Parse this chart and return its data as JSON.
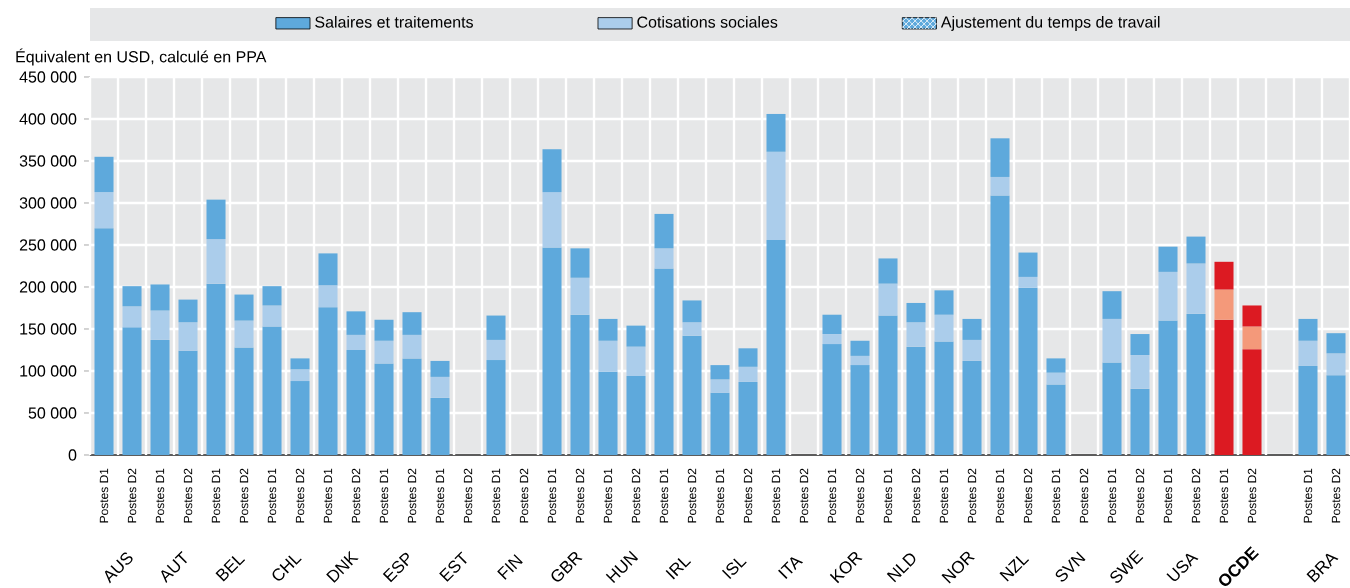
{
  "chart_data": {
    "type": "bar",
    "stacked": true,
    "ylabel": "Équivalent en USD, calculé en PPA",
    "categories": [
      "Postes D1",
      "Postes D2",
      "Postes D1",
      "Postes D2",
      "Postes D1",
      "Postes D2",
      "Postes D1",
      "Postes D2",
      "Postes D1",
      "Postes D2",
      "Postes D1",
      "Postes D2",
      "Postes D1",
      "Postes D2",
      "Postes D1",
      "Postes D2",
      "Postes D1",
      "Postes D2",
      "Postes D1",
      "Postes D2",
      "Postes D1",
      "Postes D2",
      "Postes D1",
      "Postes D2",
      "Postes D1",
      "Postes D2",
      "Postes D1",
      "Postes D2",
      "Postes D1",
      "Postes D2",
      "Postes D1",
      "Postes D2",
      "Postes D1",
      "Postes D2",
      "Postes D1",
      "Postes D2",
      "Postes D1",
      "Postes D2",
      "Postes D1",
      "Postes D2",
      "Postes D1",
      "Postes D2",
      null,
      "Postes D1",
      "Postes D2"
    ],
    "series": [
      {
        "name": "Salaires et traitements",
        "color": "#5ea9dc",
        "colors": [
          "#5ea9dc",
          "#5ea9dc",
          "#5ea9dc",
          "#5ea9dc",
          "#5ea9dc",
          "#5ea9dc",
          "#5ea9dc",
          "#5ea9dc",
          "#5ea9dc",
          "#5ea9dc",
          "#5ea9dc",
          "#5ea9dc",
          "#5ea9dc",
          "#5ea9dc",
          "#5ea9dc",
          "#5ea9dc",
          "#5ea9dc",
          "#5ea9dc",
          "#5ea9dc",
          "#5ea9dc",
          "#5ea9dc",
          "#5ea9dc",
          "#5ea9dc",
          "#5ea9dc",
          "#5ea9dc",
          "#5ea9dc",
          "#5ea9dc",
          "#5ea9dc",
          "#5ea9dc",
          "#5ea9dc",
          "#5ea9dc",
          "#5ea9dc",
          "#5ea9dc",
          "#5ea9dc",
          "#5ea9dc",
          "#5ea9dc",
          "#5ea9dc",
          "#5ea9dc",
          "#5ea9dc",
          "#5ea9dc",
          "#dc1a22",
          "#dc1a22",
          "#5ea9dc",
          "#5ea9dc",
          "#5ea9dc"
        ],
        "values": [
          270000,
          152000,
          137000,
          124000,
          204000,
          128000,
          153000,
          88000,
          176000,
          125000,
          109000,
          115000,
          68000,
          null,
          113000,
          null,
          247000,
          167000,
          99000,
          94000,
          222000,
          142000,
          74000,
          87000,
          256000,
          null,
          132000,
          107000,
          166000,
          129000,
          135000,
          112000,
          309000,
          199000,
          84000,
          null,
          110000,
          79000,
          160000,
          168000,
          161000,
          126000,
          null,
          106000,
          95000
        ]
      },
      {
        "name": "Cotisations sociales",
        "color": "#abcdeb",
        "colors": [
          "#abcdeb",
          "#abcdeb",
          "#abcdeb",
          "#abcdeb",
          "#abcdeb",
          "#abcdeb",
          "#abcdeb",
          "#abcdeb",
          "#abcdeb",
          "#abcdeb",
          "#abcdeb",
          "#abcdeb",
          "#abcdeb",
          "#abcdeb",
          "#abcdeb",
          "#abcdeb",
          "#abcdeb",
          "#abcdeb",
          "#abcdeb",
          "#abcdeb",
          "#abcdeb",
          "#abcdeb",
          "#abcdeb",
          "#abcdeb",
          "#abcdeb",
          "#abcdeb",
          "#abcdeb",
          "#abcdeb",
          "#abcdeb",
          "#abcdeb",
          "#abcdeb",
          "#abcdeb",
          "#abcdeb",
          "#abcdeb",
          "#abcdeb",
          "#abcdeb",
          "#abcdeb",
          "#abcdeb",
          "#abcdeb",
          "#abcdeb",
          "#f4997a",
          "#f4997a",
          "#abcdeb",
          "#abcdeb",
          "#abcdeb"
        ],
        "values": [
          43000,
          25000,
          35000,
          34000,
          53000,
          32000,
          25000,
          14000,
          26000,
          18000,
          27000,
          28000,
          25000,
          null,
          24000,
          null,
          66000,
          44000,
          37000,
          35000,
          24000,
          16000,
          16000,
          18000,
          105000,
          null,
          12000,
          11000,
          38000,
          29000,
          32000,
          25000,
          22000,
          13000,
          14000,
          null,
          52000,
          40000,
          58000,
          60000,
          36000,
          27000,
          null,
          30000,
          26000
        ]
      },
      {
        "name": "Ajustement du temps de travail",
        "color": "#5ea9dc",
        "colors": [
          "#5ea9dc",
          "#5ea9dc",
          "#5ea9dc",
          "#5ea9dc",
          "#5ea9dc",
          "#5ea9dc",
          "#5ea9dc",
          "#5ea9dc",
          "#5ea9dc",
          "#5ea9dc",
          "#5ea9dc",
          "#5ea9dc",
          "#5ea9dc",
          "#5ea9dc",
          "#5ea9dc",
          "#5ea9dc",
          "#5ea9dc",
          "#5ea9dc",
          "#5ea9dc",
          "#5ea9dc",
          "#5ea9dc",
          "#5ea9dc",
          "#5ea9dc",
          "#5ea9dc",
          "#5ea9dc",
          "#5ea9dc",
          "#5ea9dc",
          "#5ea9dc",
          "#5ea9dc",
          "#5ea9dc",
          "#5ea9dc",
          "#5ea9dc",
          "#5ea9dc",
          "#5ea9dc",
          "#5ea9dc",
          "#5ea9dc",
          "#5ea9dc",
          "#5ea9dc",
          "#5ea9dc",
          "#5ea9dc",
          "#dc1a22",
          "#dc1a22",
          "#5ea9dc",
          "#5ea9dc",
          "#5ea9dc"
        ],
        "values": [
          42000,
          24000,
          31000,
          27000,
          47000,
          31000,
          23000,
          13000,
          38000,
          28000,
          25000,
          27000,
          19000,
          null,
          29000,
          null,
          51000,
          35000,
          26000,
          25000,
          41000,
          26000,
          17000,
          22000,
          45000,
          null,
          23000,
          18000,
          30000,
          23000,
          29000,
          25000,
          46000,
          29000,
          17000,
          null,
          33000,
          25000,
          30000,
          32000,
          33000,
          25000,
          null,
          26000,
          24000
        ]
      }
    ],
    "annotations": [
      "AUS",
      "AUT",
      "BEL",
      "CHL",
      "DNK",
      "ESP",
      "EST",
      "FIN",
      "GBR",
      "HUN",
      "IRL",
      "ISL",
      "ITA",
      "KOR",
      "NLD",
      "NOR",
      "NZL",
      "SVN",
      "SWE",
      "USA",
      "**OCDE**",
      "BRA"
    ],
    "ylim": [
      0,
      450000
    ],
    "yticks": [
      0,
      {
        "value": 50000,
        "label": "50 000"
      },
      {
        "value": 100000,
        "label": "100 000"
      },
      {
        "value": 150000,
        "label": "150 000"
      },
      {
        "value": 200000,
        "label": "200 000"
      },
      {
        "value": 250000,
        "label": "250 000"
      },
      {
        "value": 300000,
        "label": "300 000"
      },
      {
        "value": 350000,
        "label": "350 000"
      },
      {
        "value": 400000,
        "label": "400 000"
      },
      {
        "value": 450000,
        "label": "450 000"
      }
    ],
    "grid": true,
    "legend": "top"
  }
}
